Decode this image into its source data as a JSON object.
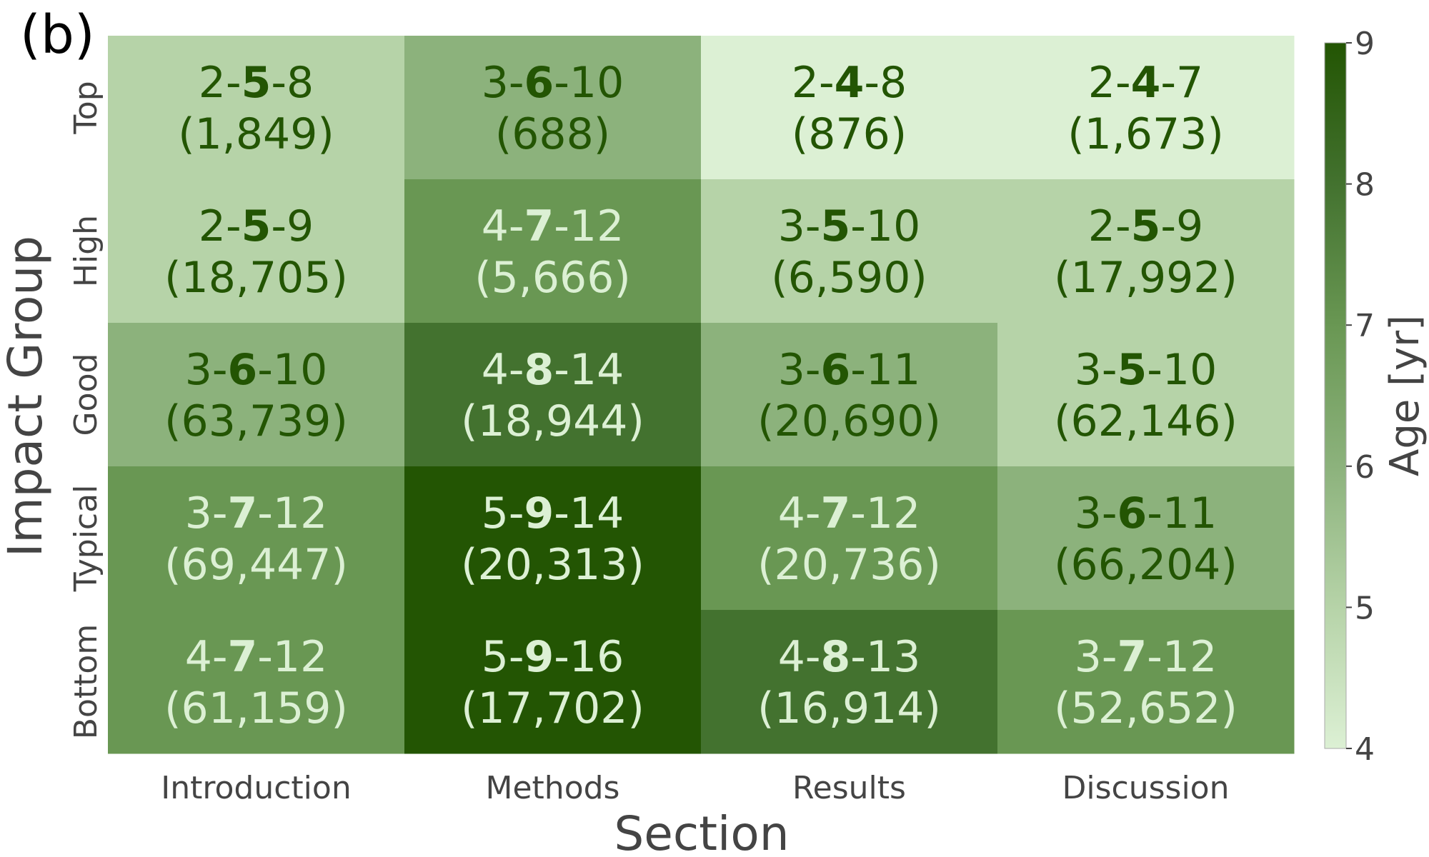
{
  "panel_label": "(b)",
  "chart_data": {
    "type": "heatmap",
    "title": "",
    "xlabel": "Section",
    "ylabel": "Impact Group",
    "x_categories": [
      "Introduction",
      "Methods",
      "Results",
      "Discussion"
    ],
    "y_categories": [
      "Top",
      "High",
      "Good",
      "Typical",
      "Bottom"
    ],
    "cells": [
      [
        {
          "low": "2",
          "median": "5",
          "high": "8",
          "count": "(1,849)",
          "value": 5
        },
        {
          "low": "3",
          "median": "6",
          "high": "10",
          "count": "(688)",
          "value": 6
        },
        {
          "low": "2",
          "median": "4",
          "high": "8",
          "count": "(876)",
          "value": 4
        },
        {
          "low": "2",
          "median": "4",
          "high": "7",
          "count": "(1,673)",
          "value": 4
        }
      ],
      [
        {
          "low": "2",
          "median": "5",
          "high": "9",
          "count": "(18,705)",
          "value": 5
        },
        {
          "low": "4",
          "median": "7",
          "high": "12",
          "count": "(5,666)",
          "value": 7
        },
        {
          "low": "3",
          "median": "5",
          "high": "10",
          "count": "(6,590)",
          "value": 5
        },
        {
          "low": "2",
          "median": "5",
          "high": "9",
          "count": "(17,992)",
          "value": 5
        }
      ],
      [
        {
          "low": "3",
          "median": "6",
          "high": "10",
          "count": "(63,739)",
          "value": 6
        },
        {
          "low": "4",
          "median": "8",
          "high": "14",
          "count": "(18,944)",
          "value": 8
        },
        {
          "low": "3",
          "median": "6",
          "high": "11",
          "count": "(20,690)",
          "value": 6
        },
        {
          "low": "3",
          "median": "5",
          "high": "10",
          "count": "(62,146)",
          "value": 5
        }
      ],
      [
        {
          "low": "3",
          "median": "7",
          "high": "12",
          "count": "(69,447)",
          "value": 7
        },
        {
          "low": "5",
          "median": "9",
          "high": "14",
          "count": "(20,313)",
          "value": 9
        },
        {
          "low": "4",
          "median": "7",
          "high": "12",
          "count": "(20,736)",
          "value": 7
        },
        {
          "low": "3",
          "median": "6",
          "high": "11",
          "count": "(66,204)",
          "value": 6
        }
      ],
      [
        {
          "low": "4",
          "median": "7",
          "high": "12",
          "count": "(61,159)",
          "value": 7
        },
        {
          "low": "5",
          "median": "9",
          "high": "16",
          "count": "(17,702)",
          "value": 9
        },
        {
          "low": "4",
          "median": "8",
          "high": "13",
          "count": "(16,914)",
          "value": 8
        },
        {
          "low": "3",
          "median": "7",
          "high": "12",
          "count": "(52,652)",
          "value": 7
        }
      ]
    ],
    "colorbar": {
      "label": "Age [yr]",
      "range": [
        4,
        9
      ],
      "ticks": [
        "4",
        "5",
        "6",
        "7",
        "8",
        "9"
      ]
    },
    "colors": {
      "4": "#dcf0d4",
      "5": "#b6d3a8",
      "6": "#8cb27c",
      "7": "#699753",
      "8": "#43722f",
      "9": "#235503",
      "text_dark": "#235503",
      "text_light": "#dcf0d4",
      "text_axis": "#444444"
    }
  }
}
